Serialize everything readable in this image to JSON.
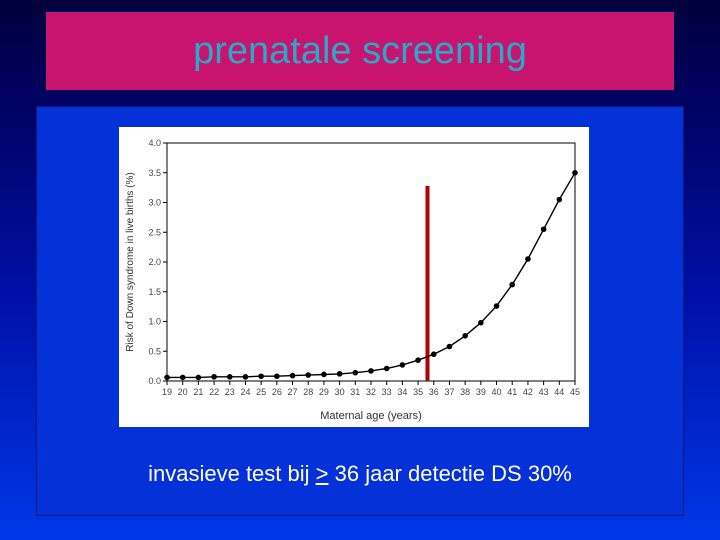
{
  "title": {
    "text": "prenatale screening",
    "color": "#2aa8c8",
    "fontsize": 38
  },
  "caption": {
    "pre": "invasieve test bij ",
    "sym": ">",
    "post": " 36 jaar detectie DS 30%",
    "color": "#ffffff",
    "fontsize": 22
  },
  "chart": {
    "type": "line-scatter",
    "xlabel": "Maternal age (years)",
    "ylabel": "Risk of Down syndrome in live births (%)",
    "label_fontsize": 10,
    "tick_fontsize": 9,
    "xlim": [
      19,
      45
    ],
    "ylim": [
      0,
      4.0
    ],
    "yticks": [
      0,
      0.5,
      1.0,
      1.5,
      2.0,
      2.5,
      3.0,
      3.5,
      4.0
    ],
    "xticks": [
      19,
      20,
      21,
      22,
      23,
      24,
      25,
      26,
      27,
      28,
      29,
      30,
      31,
      32,
      33,
      34,
      35,
      36,
      37,
      38,
      39,
      40,
      41,
      42,
      43,
      44,
      45
    ],
    "background_color": "#ffffff",
    "axis_color": "#000000",
    "line_color": "#000000",
    "line_width": 1.4,
    "marker_color": "#000000",
    "marker_radius": 2.8,
    "vline_x": 35.6,
    "vline_color": "#b00000",
    "vline_width": 4,
    "series": {
      "x": [
        19,
        20,
        21,
        22,
        23,
        24,
        25,
        26,
        27,
        28,
        29,
        30,
        31,
        32,
        33,
        34,
        35,
        36,
        37,
        38,
        39,
        40,
        41,
        42,
        43,
        44,
        45
      ],
      "y": [
        0.06,
        0.06,
        0.06,
        0.07,
        0.07,
        0.07,
        0.08,
        0.08,
        0.09,
        0.1,
        0.11,
        0.12,
        0.14,
        0.17,
        0.21,
        0.27,
        0.35,
        0.45,
        0.58,
        0.76,
        0.98,
        1.26,
        1.62,
        2.05,
        2.55,
        3.05,
        3.5
      ]
    }
  },
  "colors": {
    "title_bg": "#c8146e",
    "panel_bg": "#0432d8",
    "slide_top": "#00003a",
    "slide_bottom": "#0038e8"
  }
}
